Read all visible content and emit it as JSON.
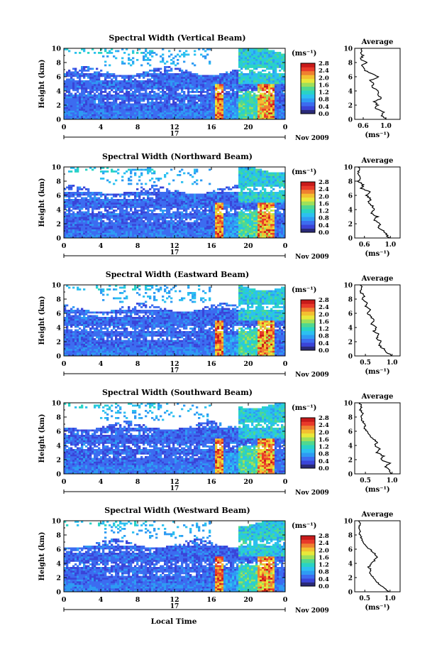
{
  "chart_data": {
    "type": "heatmap",
    "colorbar": {
      "unit": "(ms⁻¹)",
      "ticks": [
        "2.8",
        "2.4",
        "2.0",
        "1.6",
        "1.2",
        "0.8",
        "0.4",
        "0.0"
      ],
      "range": [
        0,
        2.8
      ],
      "colors": [
        "#2a2a78",
        "#3a44d8",
        "#3c6cf0",
        "#2e9bf3",
        "#2cc0f0",
        "#29d3c5",
        "#50d890",
        "#9ee05a",
        "#e8e83a",
        "#f3c030",
        "#ef8030",
        "#e83a2a",
        "#c81a1a"
      ]
    },
    "shared": {
      "xticks": [
        "0",
        "4",
        "8",
        "12",
        "16",
        "20",
        "0"
      ],
      "xlim": [
        0,
        24
      ],
      "yticks": [
        "0",
        "2",
        "4",
        "6",
        "8",
        "10"
      ],
      "ylim": [
        0,
        10
      ],
      "ylabel": "Height (km)",
      "day_label": "17",
      "month_label": "Nov 2009",
      "xlabel": "Local Time",
      "side_title": "Average",
      "side_xlabel": "(ms⁻¹)"
    },
    "panels": [
      {
        "title": "Spectral Width (Vertical Beam)",
        "side_xticks": [
          "0.6",
          "1.0"
        ],
        "side_xlim": [
          0.45,
          1.25
        ],
        "profile": [
          [
            0,
            1.02
          ],
          [
            0.5,
            0.93
          ],
          [
            1.0,
            0.96
          ],
          [
            1.5,
            0.82
          ],
          [
            2.0,
            0.85
          ],
          [
            2.5,
            0.8
          ],
          [
            3.0,
            0.92
          ],
          [
            3.5,
            0.85
          ],
          [
            4.0,
            0.88
          ],
          [
            4.5,
            0.74
          ],
          [
            5.0,
            0.78
          ],
          [
            5.5,
            0.72
          ],
          [
            6.0,
            0.88
          ],
          [
            6.5,
            0.72
          ],
          [
            7.0,
            0.62
          ],
          [
            7.5,
            0.57
          ],
          [
            8.0,
            0.65
          ],
          [
            8.5,
            0.55
          ],
          [
            9.0,
            0.6
          ],
          [
            9.5,
            0.56
          ],
          [
            10.0,
            0.58
          ]
        ]
      },
      {
        "title": "Spectral Width (Northward Beam)",
        "side_xticks": [
          "0.6",
          "1.0"
        ],
        "side_xlim": [
          0.45,
          1.15
        ],
        "profile": [
          [
            0,
            0.98
          ],
          [
            0.5,
            0.93
          ],
          [
            1.0,
            0.9
          ],
          [
            1.5,
            0.8
          ],
          [
            2.0,
            0.85
          ],
          [
            2.5,
            0.75
          ],
          [
            3.0,
            0.8
          ],
          [
            3.5,
            0.7
          ],
          [
            4.0,
            0.76
          ],
          [
            4.5,
            0.72
          ],
          [
            5.0,
            0.65
          ],
          [
            5.5,
            0.7
          ],
          [
            6.0,
            0.62
          ],
          [
            6.5,
            0.68
          ],
          [
            7.0,
            0.55
          ],
          [
            7.5,
            0.58
          ],
          [
            8.0,
            0.5
          ],
          [
            8.5,
            0.55
          ],
          [
            9.0,
            0.5
          ],
          [
            9.5,
            0.52
          ],
          [
            10.0,
            0.5
          ]
        ]
      },
      {
        "title": "Spectral Width (Eastward Beam)",
        "side_xticks": [
          "0.5",
          "1.0"
        ],
        "side_xlim": [
          0.3,
          1.15
        ],
        "profile": [
          [
            0,
            1.0
          ],
          [
            0.5,
            0.9
          ],
          [
            1.0,
            0.84
          ],
          [
            1.5,
            0.76
          ],
          [
            2.0,
            0.8
          ],
          [
            2.5,
            0.7
          ],
          [
            3.0,
            0.76
          ],
          [
            3.5,
            0.66
          ],
          [
            4.0,
            0.72
          ],
          [
            4.5,
            0.62
          ],
          [
            5.0,
            0.68
          ],
          [
            5.5,
            0.6
          ],
          [
            6.0,
            0.55
          ],
          [
            6.5,
            0.6
          ],
          [
            7.0,
            0.5
          ],
          [
            7.5,
            0.52
          ],
          [
            8.0,
            0.45
          ],
          [
            8.5,
            0.48
          ],
          [
            9.0,
            0.4
          ],
          [
            9.5,
            0.44
          ],
          [
            10.0,
            0.4
          ]
        ]
      },
      {
        "title": "Spectral Width (Southward Beam)",
        "side_xticks": [
          "0.5",
          "1.0"
        ],
        "side_xlim": [
          0.3,
          1.15
        ],
        "profile": [
          [
            0,
            1.0
          ],
          [
            0.5,
            0.94
          ],
          [
            1.0,
            0.88
          ],
          [
            1.5,
            0.95
          ],
          [
            2.0,
            0.8
          ],
          [
            2.5,
            0.84
          ],
          [
            3.0,
            0.72
          ],
          [
            3.5,
            0.78
          ],
          [
            4.0,
            0.68
          ],
          [
            4.5,
            0.72
          ],
          [
            5.0,
            0.62
          ],
          [
            5.5,
            0.58
          ],
          [
            6.0,
            0.52
          ],
          [
            6.5,
            0.48
          ],
          [
            7.0,
            0.5
          ],
          [
            7.5,
            0.44
          ],
          [
            8.0,
            0.42
          ],
          [
            8.5,
            0.46
          ],
          [
            9.0,
            0.4
          ],
          [
            9.5,
            0.42
          ],
          [
            10.0,
            0.4
          ]
        ]
      },
      {
        "title": "Spectral Width (Westward Beam)",
        "side_xticks": [
          "0.5",
          "1.0"
        ],
        "side_xlim": [
          0.3,
          1.2
        ],
        "profile": [
          [
            0,
            0.98
          ],
          [
            0.5,
            0.88
          ],
          [
            1.0,
            0.8
          ],
          [
            1.5,
            0.72
          ],
          [
            2.0,
            0.68
          ],
          [
            2.5,
            0.6
          ],
          [
            3.0,
            0.62
          ],
          [
            3.5,
            0.58
          ],
          [
            4.0,
            0.64
          ],
          [
            4.5,
            0.7
          ],
          [
            5.0,
            0.74
          ],
          [
            5.5,
            0.68
          ],
          [
            6.0,
            0.6
          ],
          [
            6.5,
            0.52
          ],
          [
            7.0,
            0.48
          ],
          [
            7.5,
            0.44
          ],
          [
            8.0,
            0.4
          ],
          [
            8.5,
            0.42
          ],
          [
            9.0,
            0.38
          ],
          [
            9.5,
            0.4
          ],
          [
            10.0,
            0.38
          ]
        ]
      }
    ]
  }
}
